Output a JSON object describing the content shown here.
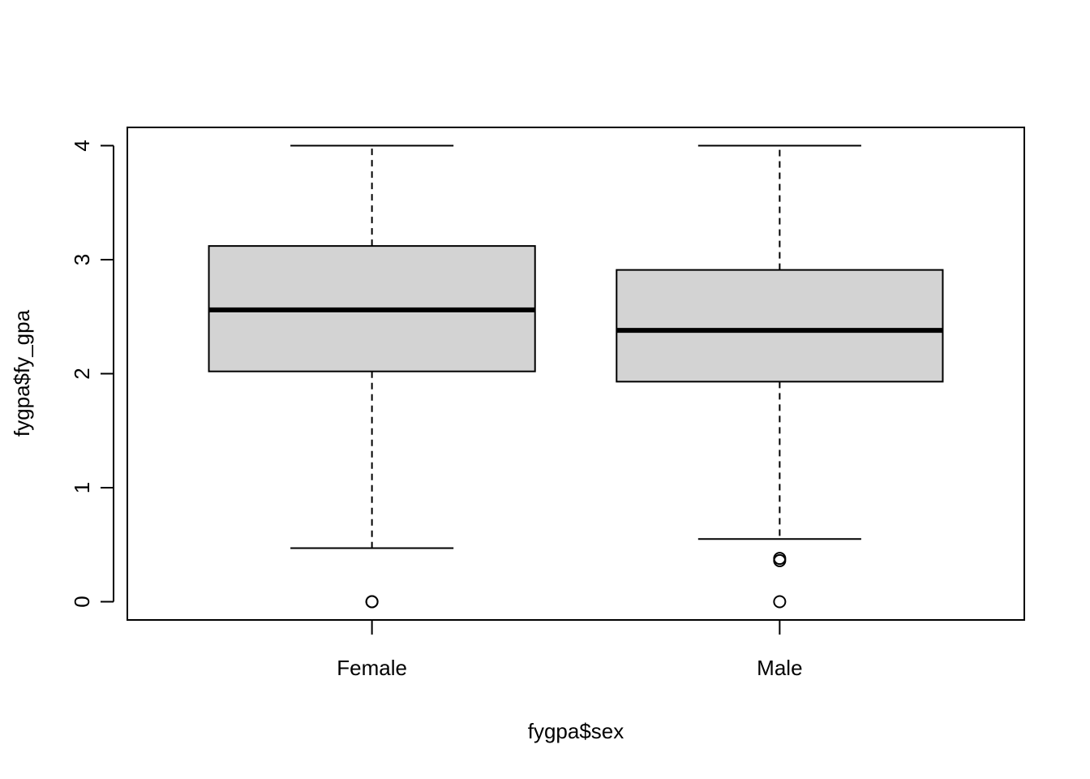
{
  "chart_data": {
    "type": "boxplot",
    "title": "",
    "xlabel": "fygpa$sex",
    "ylabel": "fygpa$fy_gpa",
    "categories": [
      "Female",
      "Male"
    ],
    "ylim": [
      -0.16,
      4.16
    ],
    "yticks": [
      0,
      1,
      2,
      3,
      4
    ],
    "grid": false,
    "legend": "none",
    "colors": {
      "box_fill": "#d3d3d3",
      "stroke": "#000000"
    },
    "boxes": [
      {
        "category": "Female",
        "lower_whisker": 0.47,
        "q1": 2.02,
        "median": 2.56,
        "q3": 3.12,
        "upper_whisker": 4.0,
        "outliers": [
          0.0,
          0.0
        ]
      },
      {
        "category": "Male",
        "lower_whisker": 0.55,
        "q1": 1.93,
        "median": 2.38,
        "q3": 2.91,
        "upper_whisker": 4.0,
        "outliers": [
          0.38,
          0.36,
          0.0
        ]
      }
    ]
  }
}
